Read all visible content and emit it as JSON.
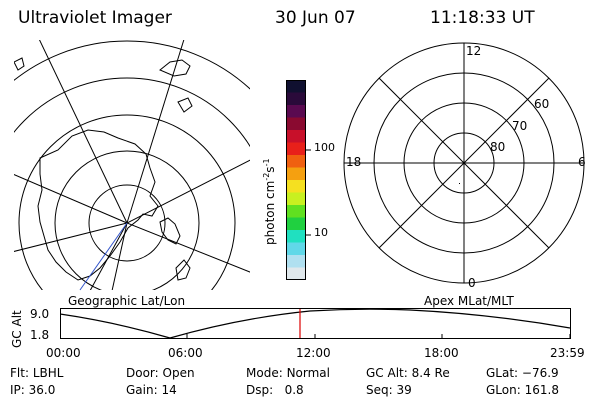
{
  "header": {
    "instrument": "Ultraviolet Imager",
    "date": "30 Jun 07",
    "time": "11:18:33 UT"
  },
  "left_panel": {
    "label": "Geographic Lat/Lon"
  },
  "right_panel": {
    "label": "Apex MLat/MLT",
    "mlt_labels": {
      "top": "12",
      "left": "18",
      "right": "6",
      "bottom": "0"
    },
    "lat_labels": [
      "60",
      "70",
      "80"
    ]
  },
  "colorbar": {
    "unit_label": "photon cm",
    "unit_exp1": "-2",
    "unit_s": "s",
    "unit_exp2": "-1",
    "tick_100": "100",
    "tick_10": "10",
    "colors": [
      "#101030",
      "#2a0a3a",
      "#5a0a50",
      "#8a0a30",
      "#c8102a",
      "#e8201a",
      "#f06010",
      "#f5a010",
      "#f5e020",
      "#c8f020",
      "#60e020",
      "#20d040",
      "#20e0c0",
      "#60d8e8",
      "#b0e0f0",
      "#e0e8ec"
    ]
  },
  "altitude_plot": {
    "ylabel": "GC Alt",
    "y_top": "9.0",
    "y_bottom": "1.8",
    "x_ticks": [
      "00:00",
      "06:00",
      "12:00",
      "18:00",
      "23:59"
    ],
    "marker_color": "#dd0000"
  },
  "info": {
    "flt_label": "Flt:",
    "flt_value": "LBHL",
    "ip_label": "IP:",
    "ip_value": "36.0",
    "door_label": "Door:",
    "door_value": "Open",
    "gain_label": "Gain:",
    "gain_value": "14",
    "mode_label": "Mode:",
    "mode_value": "Normal",
    "dsp_label": "Dsp:",
    "dsp_value": "0.8",
    "gcalt_label": "GC Alt:",
    "gcalt_value": "8.4 Re",
    "seq_label": "Seq:",
    "seq_value": "39",
    "glat_label": "GLat:",
    "glat_value": "−76.9",
    "glon_label": "GLon:",
    "glon_value": "161.8"
  }
}
